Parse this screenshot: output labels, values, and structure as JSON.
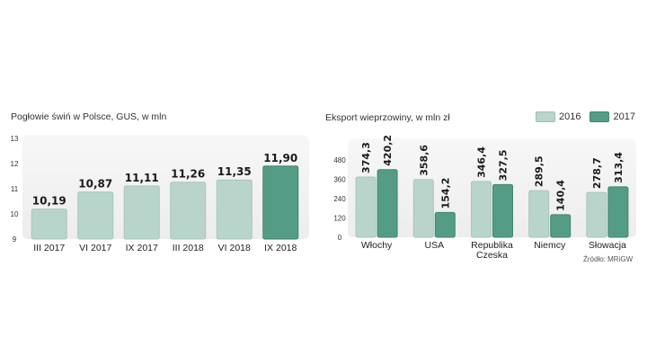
{
  "source": "Źródło: MRiGW",
  "colors": {
    "light": "#b9d5cb",
    "dark": "#559c86",
    "panel": "#ededed"
  },
  "chart_data": [
    {
      "type": "bar",
      "title": "Pogłowie świń w Polsce, GUS, w mln",
      "categories": [
        "III 2017",
        "VI 2017",
        "IX 2017",
        "III 2018",
        "VI 2018",
        "IX 2018"
      ],
      "values": [
        10.19,
        10.87,
        11.11,
        11.26,
        11.35,
        11.9
      ],
      "value_labels": [
        "10,19",
        "10,87",
        "11,11",
        "11,26",
        "11,35",
        "11,90"
      ],
      "yticks": [
        "13",
        "12",
        "11",
        "10",
        "9"
      ],
      "ylim": [
        9,
        13
      ],
      "highlight_last": true,
      "grid": false
    },
    {
      "type": "bar",
      "title": "Eksport wieprzowiny, w mln zł",
      "categories": [
        "Włochy",
        "USA",
        "Republika Czeska",
        "Niemcy",
        "Słowacja"
      ],
      "category_lines": [
        [
          "Włochy"
        ],
        [
          "USA"
        ],
        [
          "Republika",
          "Czeska"
        ],
        [
          "Niemcy"
        ],
        [
          "Słowacja"
        ]
      ],
      "series": [
        {
          "name": "2016",
          "values": [
            374.3,
            358.6,
            346.4,
            289.5,
            278.7
          ],
          "value_labels": [
            "374,3",
            "358,6",
            "346,4",
            "289,5",
            "278,7"
          ]
        },
        {
          "name": "2017",
          "values": [
            420.2,
            154.2,
            327.5,
            140.4,
            313.4
          ],
          "value_labels": [
            "420,2",
            "154,2",
            "327,5",
            "140,4",
            "313,4"
          ]
        }
      ],
      "yticks": [
        "480",
        "360",
        "240",
        "120",
        "0"
      ],
      "ylim": [
        0,
        480
      ],
      "legend": "top-right",
      "grid": false
    }
  ]
}
